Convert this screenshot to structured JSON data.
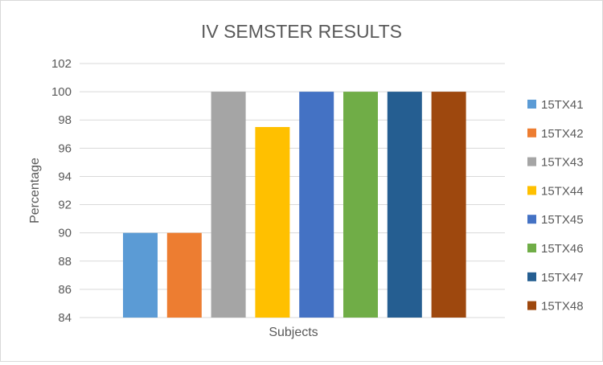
{
  "chart_data": {
    "type": "bar",
    "title": "IV SEMSTER RESULTS",
    "xlabel": "Subjects",
    "ylabel": "Percentage",
    "ylim": [
      84,
      102
    ],
    "yticks": [
      "84",
      "86",
      "88",
      "90",
      "92",
      "94",
      "96",
      "98",
      "100",
      "102"
    ],
    "grid": true,
    "legend_position": "right",
    "series": [
      {
        "name": "15TX41",
        "value": 90,
        "color": "#5b9bd5"
      },
      {
        "name": "15TX42",
        "value": 90,
        "color": "#ed7d31"
      },
      {
        "name": "15TX43",
        "value": 100,
        "color": "#a5a5a5"
      },
      {
        "name": "15TX44",
        "value": 97.5,
        "color": "#ffc000"
      },
      {
        "name": "15TX45",
        "value": 100,
        "color": "#4472c4"
      },
      {
        "name": "15TX46",
        "value": 100,
        "color": "#70ad47"
      },
      {
        "name": "15TX47",
        "value": 100,
        "color": "#255e91"
      },
      {
        "name": "15TX48",
        "value": 100,
        "color": "#9e480e"
      }
    ]
  }
}
